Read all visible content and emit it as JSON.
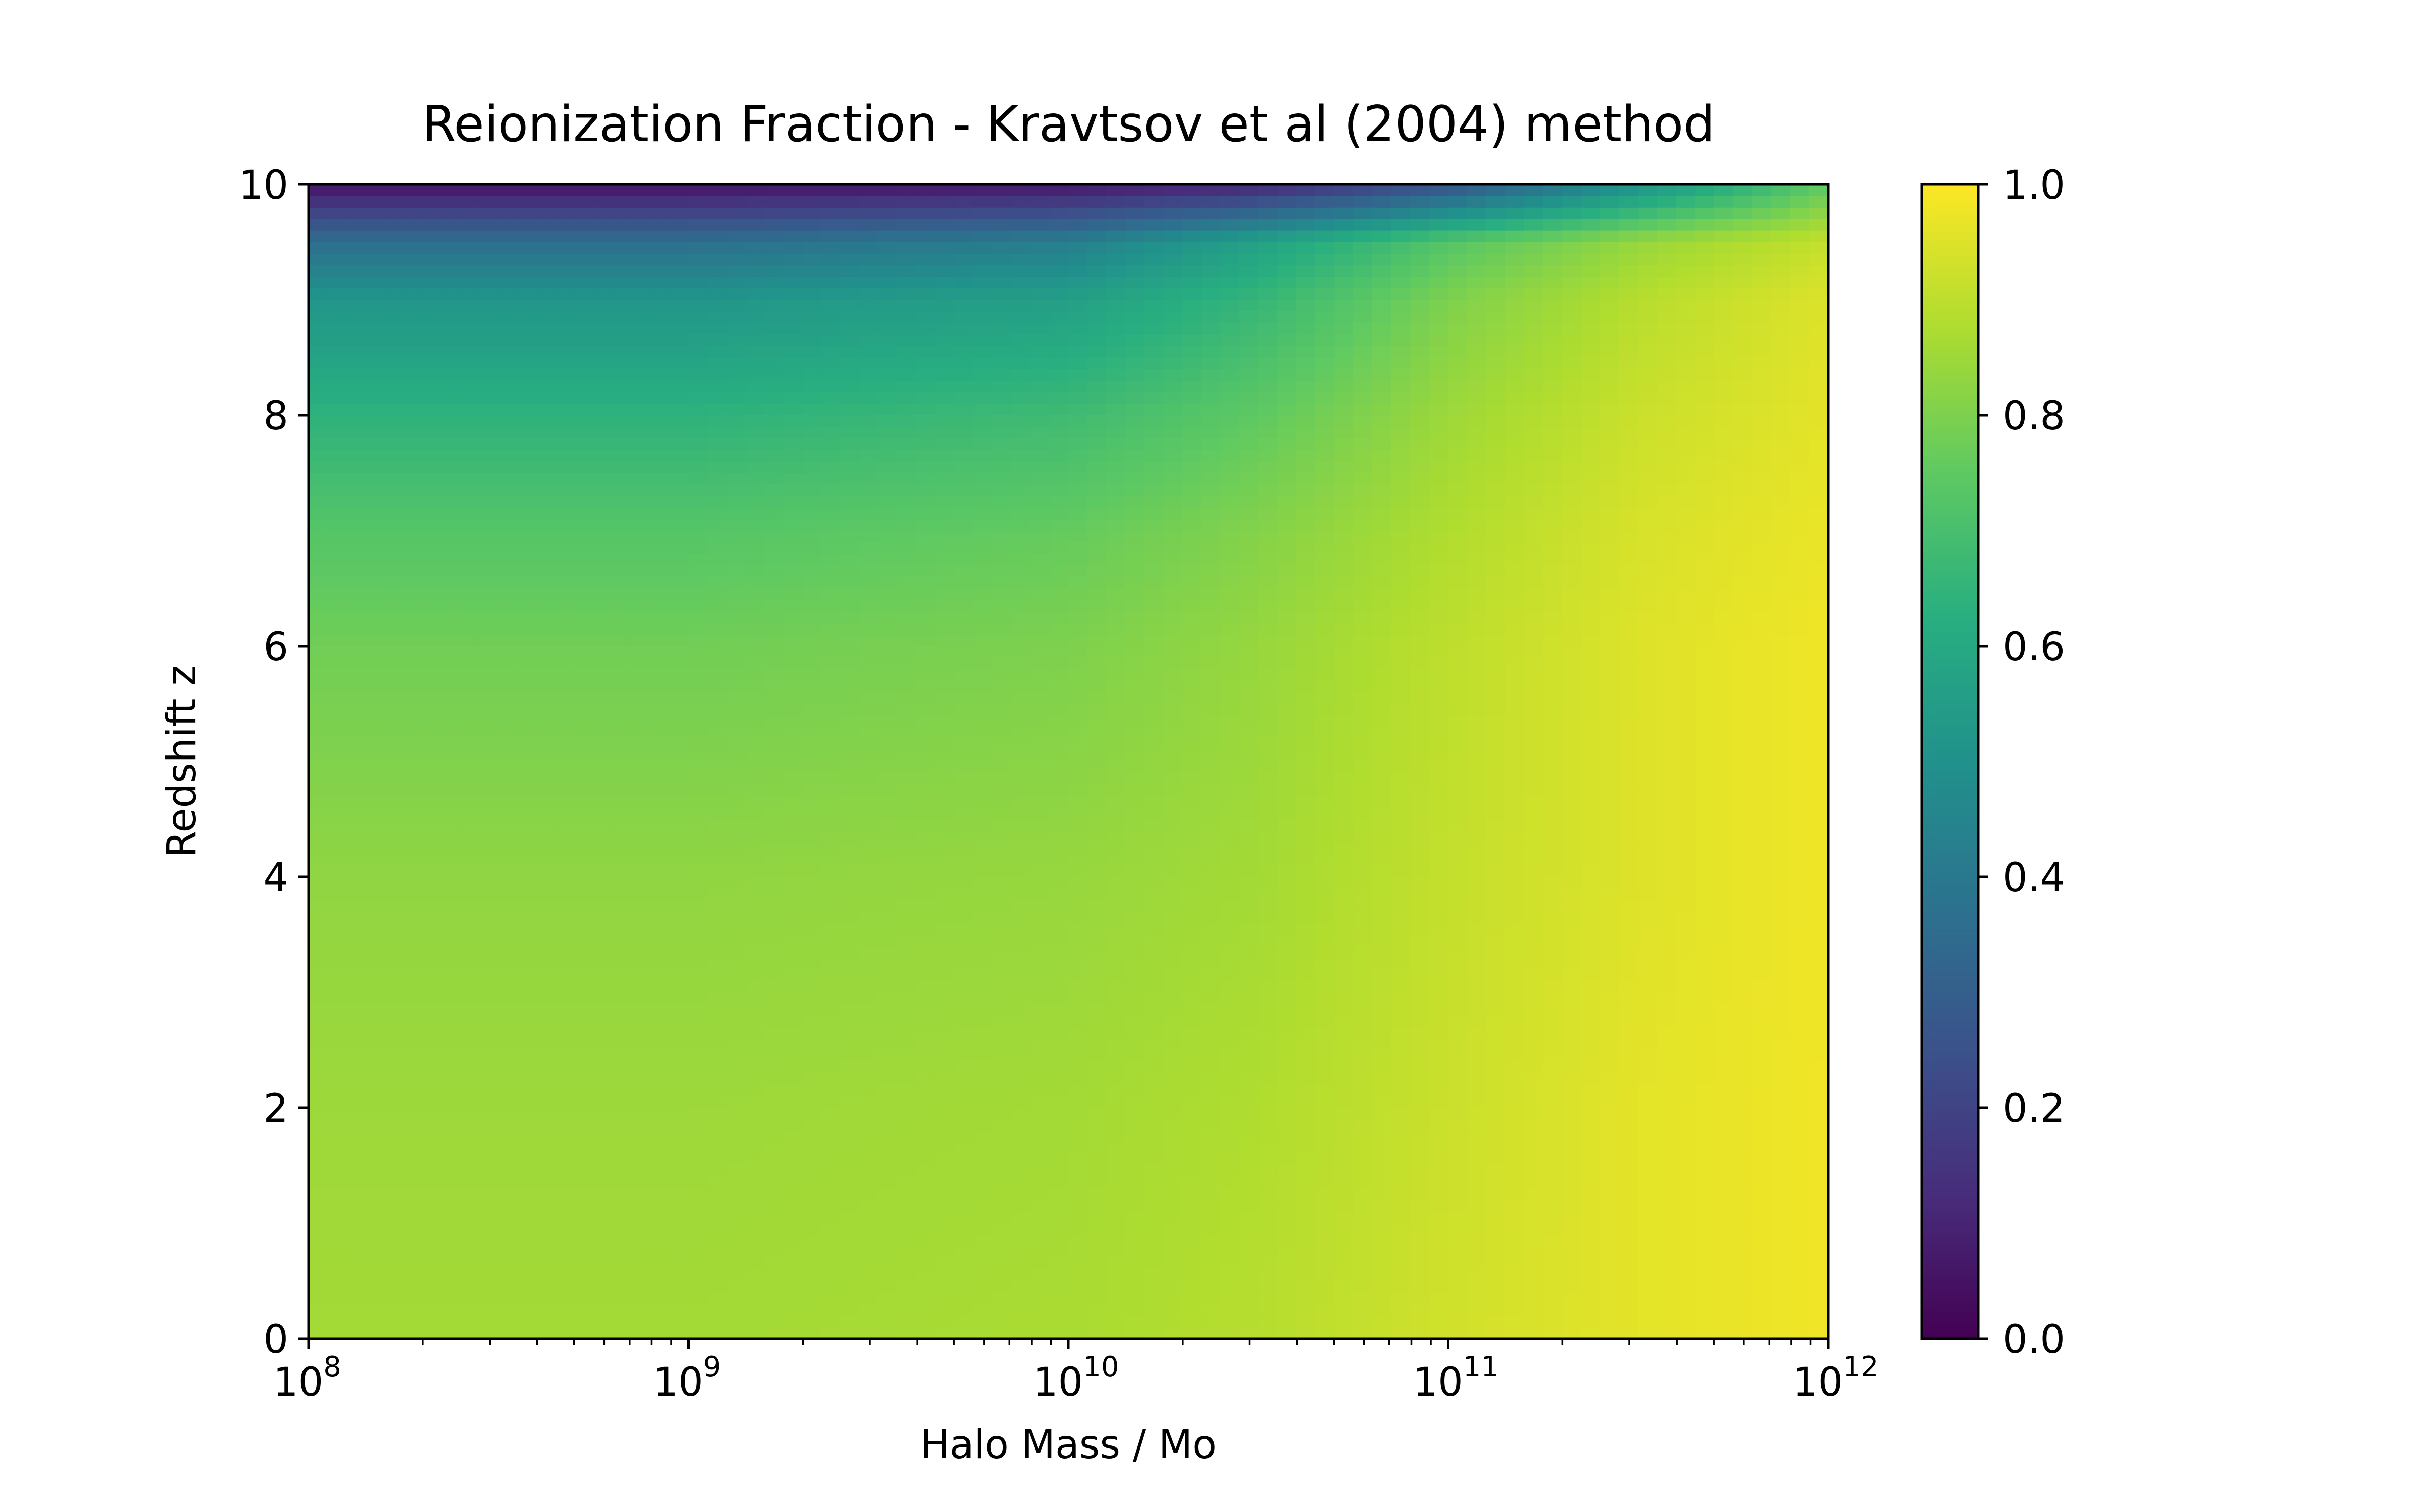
{
  "chart_data": {
    "type": "heatmap",
    "title": "Reionization Fraction - Kravtsov et al (2004) method",
    "xlabel": "Halo Mass / Mo",
    "ylabel": "Redshift z",
    "x_scale": "log",
    "xlim": [
      100000000,
      1000000000000
    ],
    "ylim": [
      0,
      10
    ],
    "x_ticks": [
      {
        "base": "10",
        "exp": "8",
        "value": 100000000
      },
      {
        "base": "10",
        "exp": "9",
        "value": 1000000000
      },
      {
        "base": "10",
        "exp": "10",
        "value": 10000000000
      },
      {
        "base": "10",
        "exp": "11",
        "value": 100000000000
      },
      {
        "base": "10",
        "exp": "12",
        "value": 1000000000000
      }
    ],
    "y_ticks": [
      {
        "label": "0",
        "value": 0
      },
      {
        "label": "2",
        "value": 2
      },
      {
        "label": "4",
        "value": 4
      },
      {
        "label": "6",
        "value": 6
      },
      {
        "label": "8",
        "value": 8
      },
      {
        "label": "10",
        "value": 10
      }
    ],
    "colormap": "viridis",
    "colorbar": {
      "vmin": 0.0,
      "vmax": 1.0,
      "ticks": [
        {
          "label": "0.0",
          "value": 0.0
        },
        {
          "label": "0.2",
          "value": 0.2
        },
        {
          "label": "0.4",
          "value": 0.4
        },
        {
          "label": "0.6",
          "value": 0.6
        },
        {
          "label": "0.8",
          "value": 0.8
        },
        {
          "label": "1.0",
          "value": 1.0
        }
      ]
    },
    "grid": {
      "log10_mass": [
        8,
        9,
        10,
        10.5,
        11,
        11.5,
        12
      ],
      "z": [
        0,
        2,
        4,
        6,
        7,
        8,
        9,
        9.5,
        10
      ],
      "values": [
        [
          0.86,
          0.86,
          0.87,
          0.89,
          0.93,
          0.96,
          0.98
        ],
        [
          0.85,
          0.85,
          0.86,
          0.88,
          0.92,
          0.96,
          0.98
        ],
        [
          0.83,
          0.83,
          0.84,
          0.86,
          0.91,
          0.95,
          0.98
        ],
        [
          0.78,
          0.78,
          0.8,
          0.84,
          0.9,
          0.95,
          0.98
        ],
        [
          0.73,
          0.73,
          0.76,
          0.81,
          0.88,
          0.94,
          0.97
        ],
        [
          0.64,
          0.64,
          0.68,
          0.75,
          0.85,
          0.92,
          0.96
        ],
        [
          0.52,
          0.52,
          0.56,
          0.66,
          0.8,
          0.89,
          0.95
        ],
        [
          0.36,
          0.36,
          0.42,
          0.57,
          0.73,
          0.84,
          0.91
        ],
        [
          0.05,
          0.05,
          0.06,
          0.1,
          0.25,
          0.5,
          0.75
        ]
      ]
    }
  }
}
